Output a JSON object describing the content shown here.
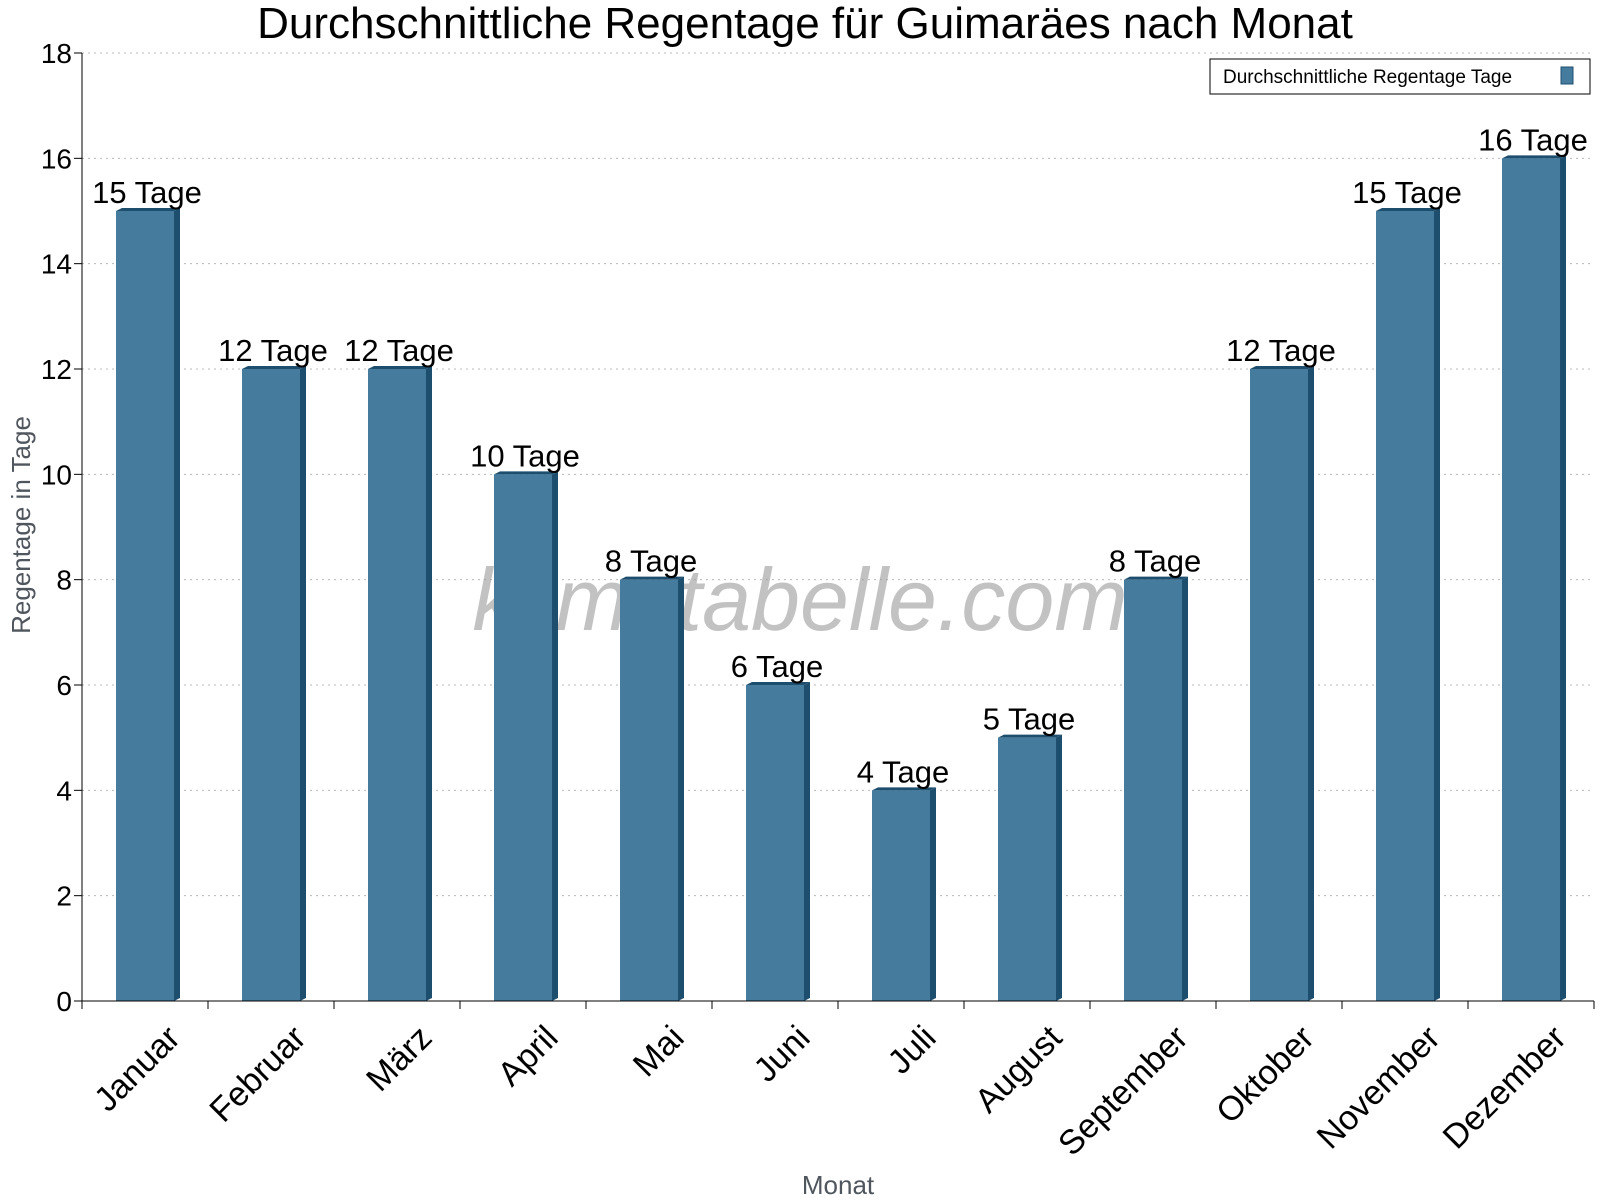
{
  "chart_data": {
    "type": "bar",
    "title": "Durchschnittliche Regentage für Guimaräes nach Monat",
    "xlabel": "Monat",
    "ylabel": "Regentage in Tage",
    "categories": [
      "Januar",
      "Februar",
      "März",
      "April",
      "Mai",
      "Juni",
      "Juli",
      "August",
      "September",
      "Oktober",
      "November",
      "Dezember"
    ],
    "series": [
      {
        "name": "Durchschnittliche Regentage Tage",
        "values": [
          15,
          12,
          12,
          10,
          8,
          6,
          4,
          5,
          8,
          12,
          15,
          16
        ],
        "color": "#457b9d",
        "side_color": "#1d4e6e"
      }
    ],
    "data_labels": [
      "15 Tage",
      "12 Tage",
      "12 Tage",
      "10 Tage",
      "8 Tage",
      "6 Tage",
      "4 Tage",
      "5 Tage",
      "8 Tage",
      "12 Tage",
      "15 Tage",
      "16 Tage"
    ],
    "ylim": [
      0,
      18
    ],
    "yticks": [
      0,
      2,
      4,
      6,
      8,
      10,
      12,
      14,
      16,
      18
    ],
    "grid": true,
    "legend_position": "top-right",
    "watermark": "klimatabelle.com"
  }
}
